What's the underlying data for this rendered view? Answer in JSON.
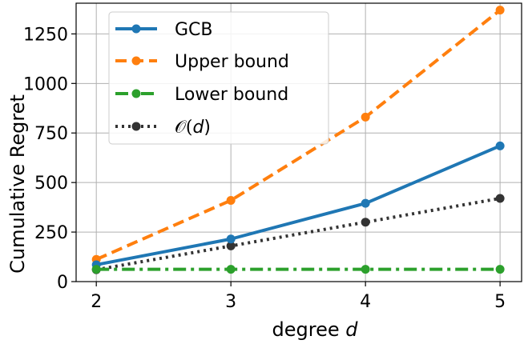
{
  "chart_data": {
    "type": "line",
    "x": [
      2,
      3,
      4,
      5
    ],
    "x_ticks": [
      "2",
      "3",
      "4",
      "5"
    ],
    "y_ticks": [
      0,
      250,
      500,
      750,
      1000,
      1250
    ],
    "y_tick_labels": [
      "0",
      "250",
      "500",
      "750",
      "1000",
      "1250"
    ],
    "xlim": [
      1.85,
      5.16
    ],
    "ylim": [
      0,
      1405
    ],
    "xlabel_main": "degree ",
    "xlabel_var": "d",
    "ylabel": "Cumulative Regret",
    "grid": true,
    "legend_position": "top-left",
    "series": [
      {
        "name": "GCB",
        "values": [
          85,
          215,
          395,
          685
        ],
        "color": "#1f77b4",
        "dash": "solid"
      },
      {
        "name": "Upper bound",
        "values": [
          112,
          410,
          830,
          1370
        ],
        "color": "#ff7f0e",
        "dash": "dashed"
      },
      {
        "name": "Lower bound",
        "values": [
          62,
          62,
          62,
          62
        ],
        "color": "#2ca02c",
        "dash": "dashdot"
      },
      {
        "name_prefix": "𝒪(",
        "name_var": "d",
        "name_suffix": ")",
        "values": [
          60,
          180,
          300,
          420
        ],
        "color": "#333333",
        "dash": "dotted"
      }
    ]
  }
}
